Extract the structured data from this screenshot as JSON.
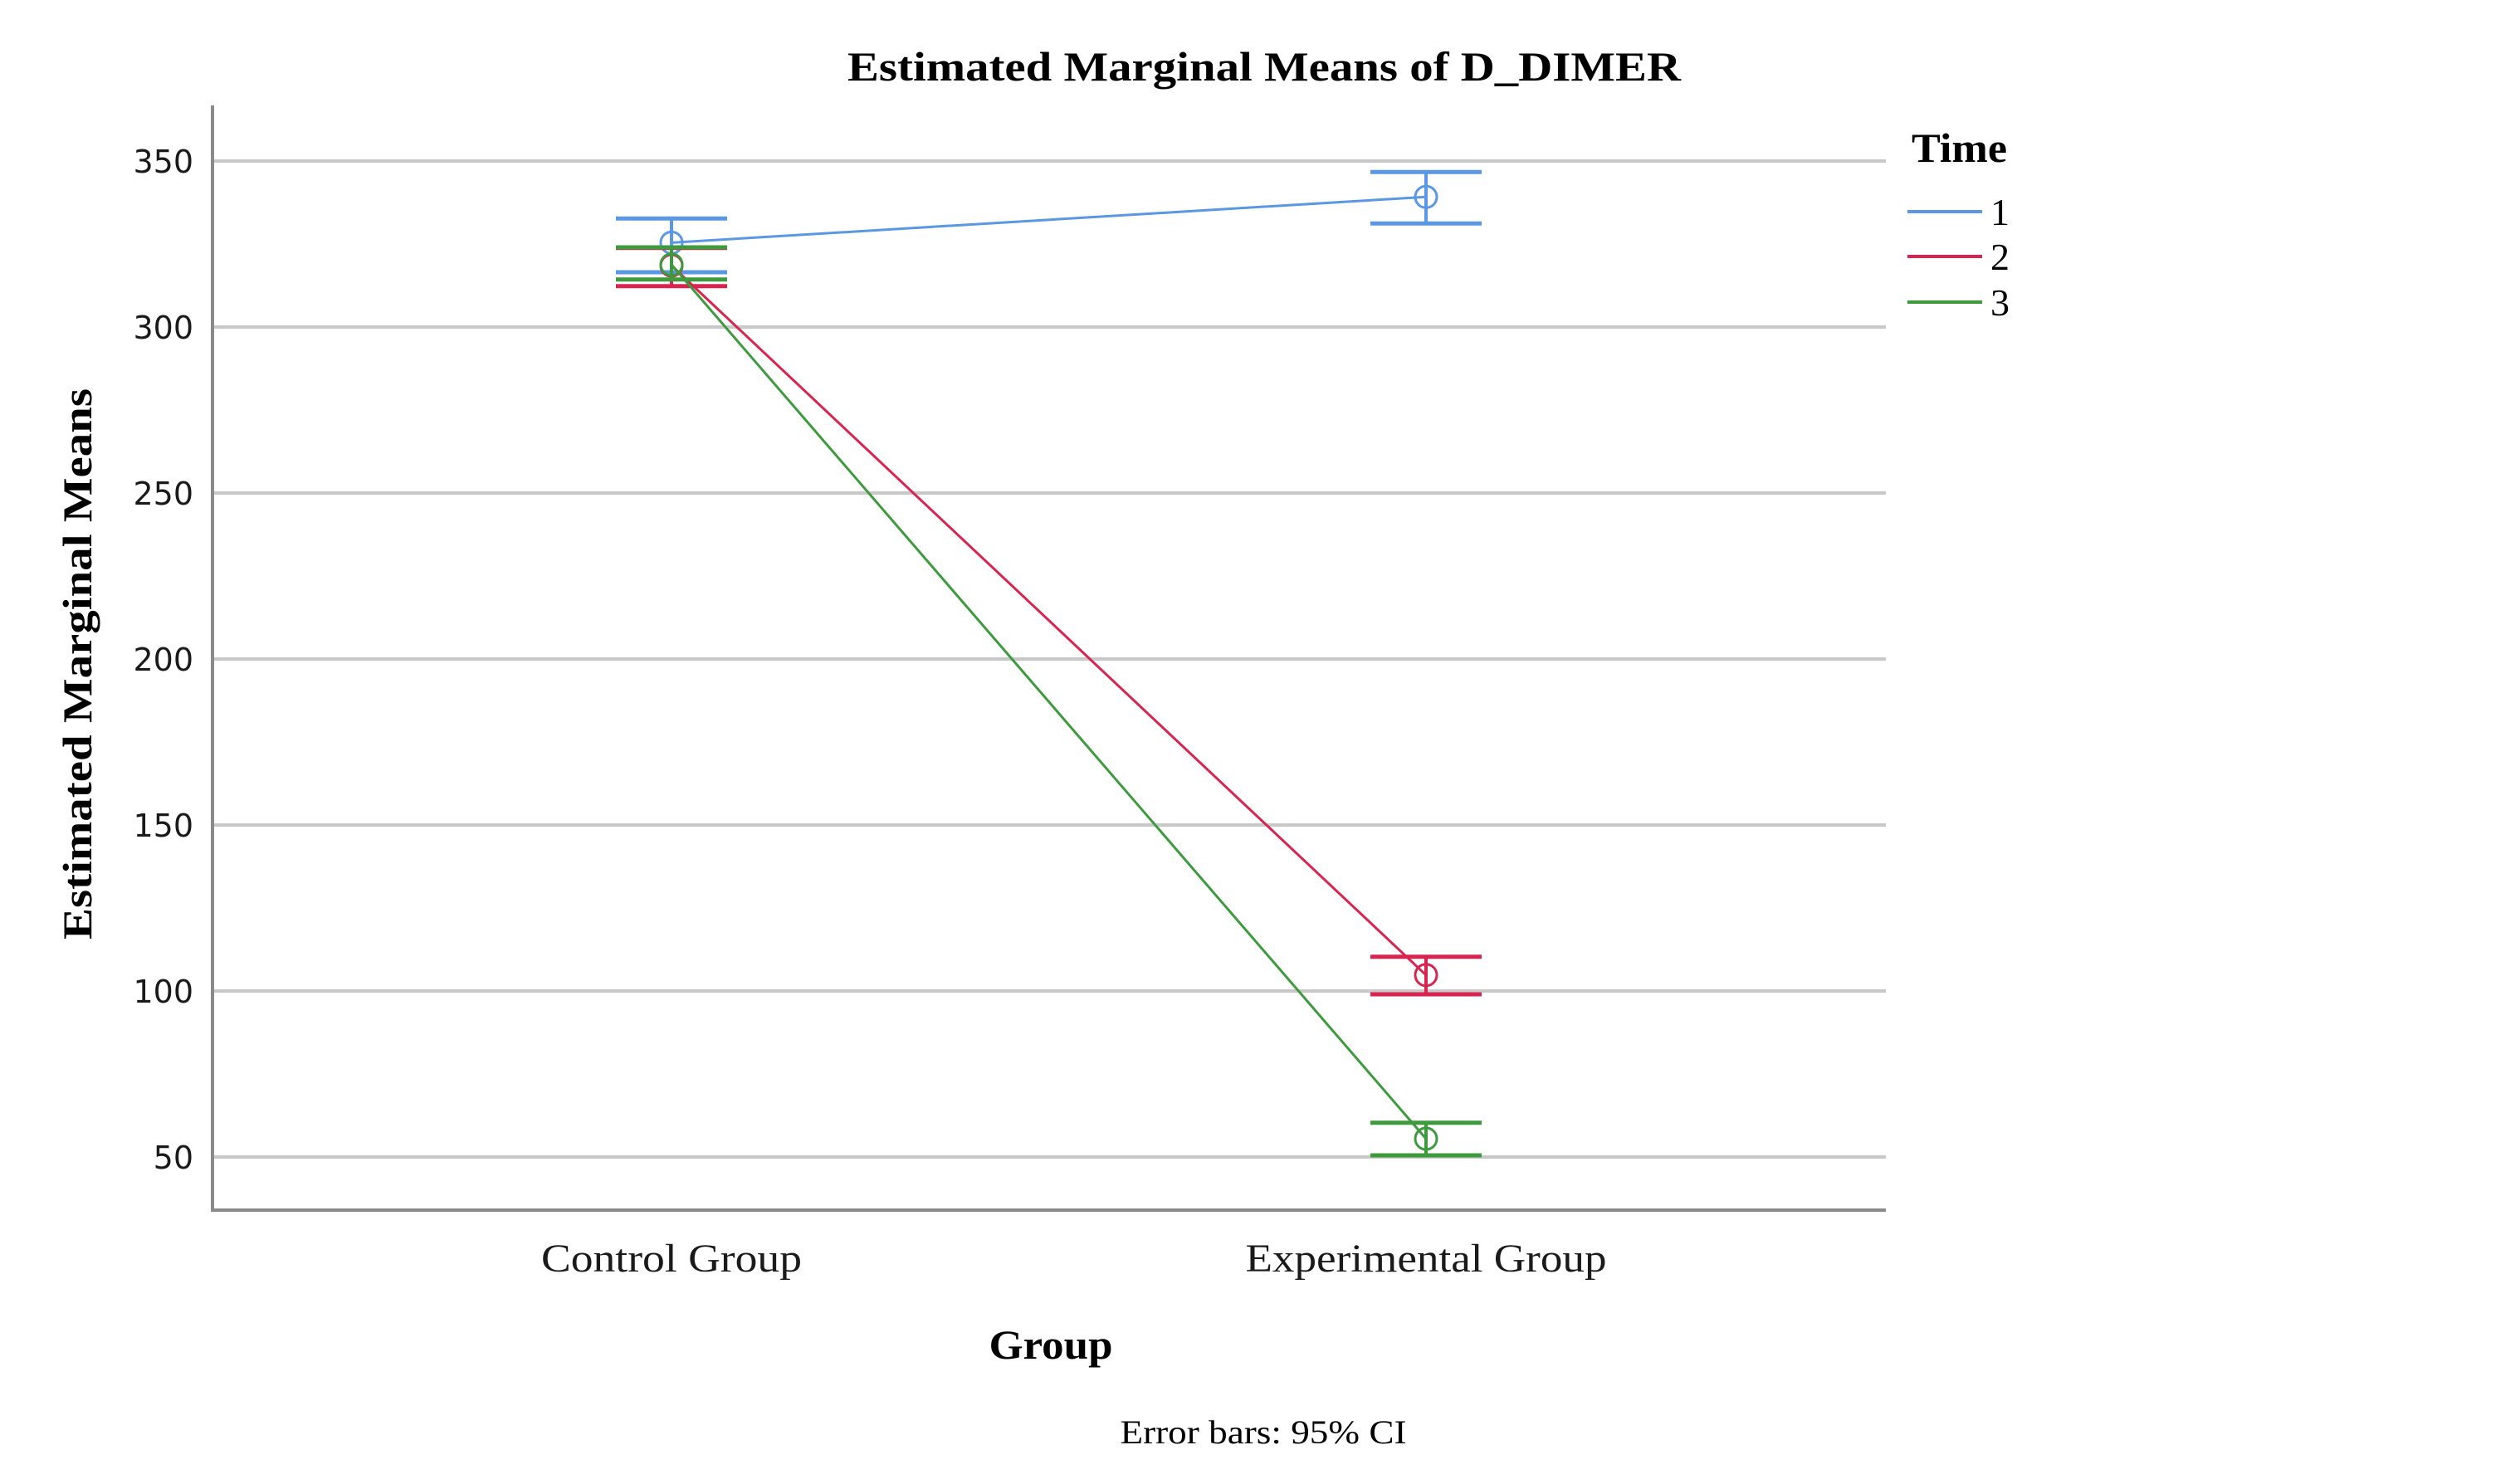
{
  "chart_data": {
    "type": "line",
    "title": "Estimated Marginal Means of D_DIMER",
    "xlabel": "Group",
    "ylabel": "Estimated Marginal Means",
    "categories": [
      "Control Group",
      "Experimental Group"
    ],
    "ylim": [
      34,
      366
    ],
    "yticks": [
      50,
      100,
      150,
      200,
      250,
      300,
      350
    ],
    "ytick_labels": [
      "50",
      "100",
      "150",
      "200",
      "250",
      "300",
      "350"
    ],
    "grid": true,
    "legend": {
      "title": "Time",
      "position": "top-right"
    },
    "footnote": "Error bars: 95% CI",
    "series": [
      {
        "name": "1",
        "color": "#5a97e4",
        "values": [
          325.4,
          339.2
        ],
        "ci_lower": [
          316.5,
          331.2
        ],
        "ci_upper": [
          332.7,
          346.7
        ]
      },
      {
        "name": "2",
        "color": "#d9244f",
        "values": [
          318.5,
          104.8
        ],
        "ci_lower": [
          312.3,
          99.0
        ],
        "ci_upper": [
          323.8,
          110.3
        ]
      },
      {
        "name": "3",
        "color": "#3d9a3d",
        "values": [
          318.8,
          55.5
        ],
        "ci_lower": [
          314.3,
          50.5
        ],
        "ci_upper": [
          324.0,
          60.3
        ]
      }
    ]
  }
}
